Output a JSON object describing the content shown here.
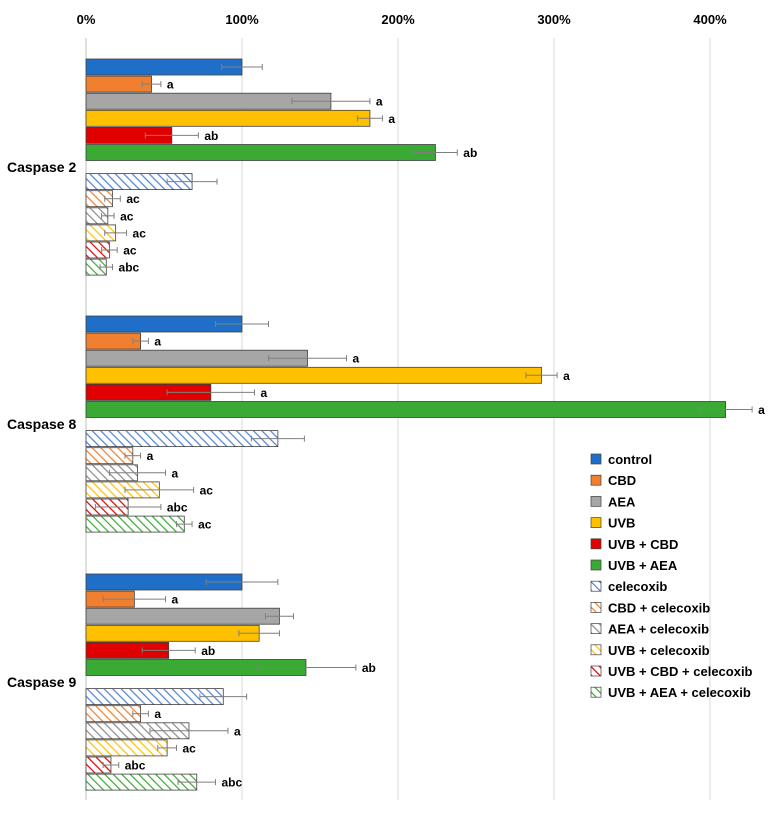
{
  "chart_data": {
    "type": "bar",
    "orientation": "horizontal",
    "xlim": [
      0,
      4.3
    ],
    "x_ticks": [
      {
        "value": 0,
        "label": "0%"
      },
      {
        "value": 1,
        "label": "100%"
      },
      {
        "value": 2,
        "label": "200%"
      },
      {
        "value": 3,
        "label": "300%"
      },
      {
        "value": 4,
        "label": "400%"
      }
    ],
    "grid": true,
    "legend_position": "bottom-right",
    "series": [
      {
        "name": "control",
        "color": "#1f6fc9",
        "pattern": "solid"
      },
      {
        "name": "CBD",
        "color": "#f08030",
        "pattern": "solid"
      },
      {
        "name": "AEA",
        "color": "#a6a6a6",
        "pattern": "solid"
      },
      {
        "name": "UVB",
        "color": "#ffc000",
        "pattern": "solid"
      },
      {
        "name": "UVB + CBD",
        "color": "#e00000",
        "pattern": "solid"
      },
      {
        "name": "UVB + AEA",
        "color": "#3aaa35",
        "pattern": "solid"
      },
      {
        "name": "celecoxib",
        "color": "#4f81d6",
        "pattern": "hatch"
      },
      {
        "name": "CBD + celecoxib",
        "color": "#f08030",
        "pattern": "hatch"
      },
      {
        "name": "AEA + celecoxib",
        "color": "#8c8c8c",
        "pattern": "hatch"
      },
      {
        "name": "UVB + celecoxib",
        "color": "#ffc000",
        "pattern": "hatch"
      },
      {
        "name": "UVB + CBD + celecoxib",
        "color": "#e00000",
        "pattern": "hatch"
      },
      {
        "name": "UVB + AEA + celecoxib",
        "color": "#3aaa35",
        "pattern": "hatch"
      }
    ],
    "groups": [
      {
        "label": "Caspase 2",
        "values": [
          1.0,
          0.42,
          1.57,
          1.82,
          0.55,
          2.24,
          0.68,
          0.17,
          0.14,
          0.19,
          0.15,
          0.13
        ],
        "errors": [
          0.13,
          0.06,
          0.25,
          0.08,
          0.17,
          0.14,
          0.16,
          0.05,
          0.04,
          0.07,
          0.05,
          0.04
        ],
        "labels": [
          "",
          "a",
          "a",
          "a",
          "ab",
          "ab",
          "",
          "ac",
          "ac",
          "ac",
          "ac",
          "abc"
        ]
      },
      {
        "label": "Caspase 8",
        "values": [
          1.0,
          0.35,
          1.42,
          2.92,
          0.8,
          4.1,
          1.23,
          0.3,
          0.33,
          0.47,
          0.27,
          0.63
        ],
        "errors": [
          0.17,
          0.05,
          0.25,
          0.1,
          0.28,
          0.17,
          0.17,
          0.05,
          0.18,
          0.22,
          0.21,
          0.05
        ],
        "labels": [
          "",
          "a",
          "a",
          "a",
          "a",
          "a",
          "",
          "a",
          "a",
          "ac",
          "abc",
          "ac"
        ]
      },
      {
        "label": "Caspase 9",
        "values": [
          1.0,
          0.31,
          1.24,
          1.11,
          0.53,
          1.41,
          0.88,
          0.35,
          0.66,
          0.52,
          0.16,
          0.71
        ],
        "errors": [
          0.23,
          0.2,
          0.09,
          0.13,
          0.17,
          0.32,
          0.15,
          0.05,
          0.25,
          0.06,
          0.05,
          0.12
        ],
        "labels": [
          "",
          "a",
          "",
          "",
          "ab",
          "ab",
          "",
          "a",
          "a",
          "ac",
          "abc",
          "abc"
        ]
      }
    ]
  }
}
